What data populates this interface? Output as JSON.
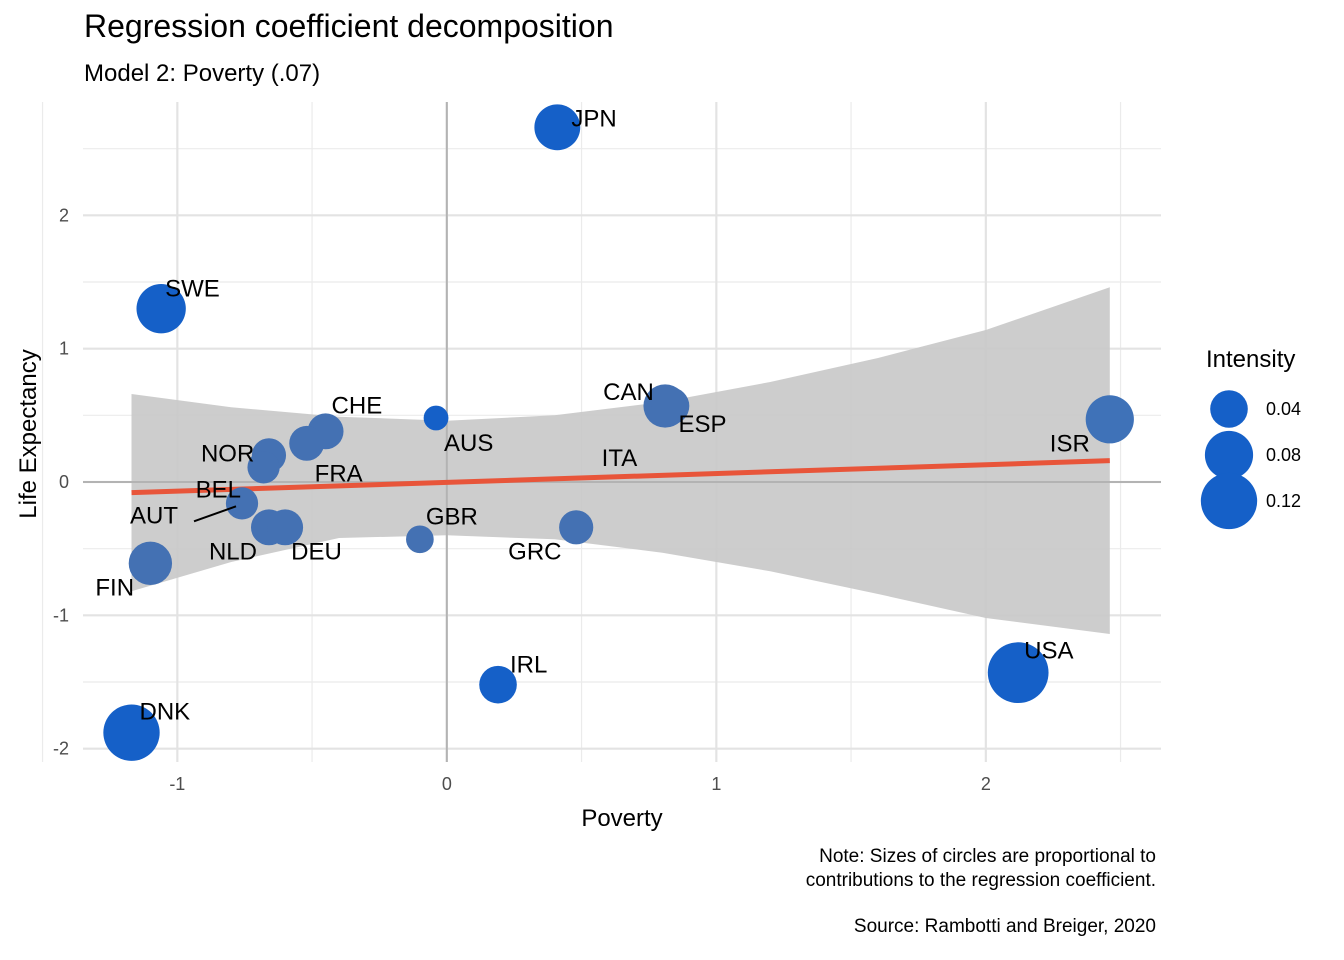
{
  "chart_data": {
    "type": "scatter",
    "title": "Regression coefficient decomposition",
    "subtitle": "Model 2: Poverty (.07)",
    "xlabel": "Poverty",
    "ylabel": "Life Expectancy",
    "xlim": [
      -1.35,
      2.65
    ],
    "ylim": [
      -2.1,
      2.85
    ],
    "x_ticks": [
      -1,
      0,
      1,
      2
    ],
    "y_ticks": [
      -2,
      -1,
      0,
      1,
      2
    ],
    "grid": true,
    "points": [
      {
        "label": "JPN",
        "x": 0.41,
        "y": 2.66,
        "size": 0.07,
        "color": "#1560c8"
      },
      {
        "label": "SWE",
        "x": -1.06,
        "y": 1.3,
        "size": 0.085,
        "color": "#1560c8"
      },
      {
        "label": "CAN",
        "x": 0.81,
        "y": 0.57,
        "size": 0.06,
        "color": "#4471b3"
      },
      {
        "label": "ESP",
        "x": 0.83,
        "y": 0.57,
        "size": 0.04,
        "color": "#4471b3"
      },
      {
        "label": "CHE",
        "x": -0.45,
        "y": 0.38,
        "size": 0.035,
        "color": "#4471b3"
      },
      {
        "label": "AUS",
        "x": -0.04,
        "y": 0.48,
        "size": 0.01,
        "color": "#1560c8"
      },
      {
        "label": "NOR",
        "x": -0.66,
        "y": 0.2,
        "size": 0.03,
        "color": "#4471b3"
      },
      {
        "label": "FRA",
        "x": -0.52,
        "y": 0.29,
        "size": 0.032,
        "color": "#4471b3"
      },
      {
        "label": "BEL",
        "x": -0.68,
        "y": 0.11,
        "size": 0.025,
        "color": "#4471b3"
      },
      {
        "label": "ITA",
        "x": 0.53,
        "y": 0.03,
        "size": 0.0,
        "color": "#1560c8"
      },
      {
        "label": "ISR",
        "x": 2.46,
        "y": 0.47,
        "size": 0.08,
        "color": "#3f72b8"
      },
      {
        "label": "AUT",
        "x": -0.76,
        "y": -0.16,
        "size": 0.025,
        "color": "#4471b3"
      },
      {
        "label": "NLD",
        "x": -0.66,
        "y": -0.34,
        "size": 0.035,
        "color": "#4471b3"
      },
      {
        "label": "DEU",
        "x": -0.6,
        "y": -0.34,
        "size": 0.035,
        "color": "#4471b3"
      },
      {
        "label": "GBR",
        "x": -0.1,
        "y": -0.43,
        "size": 0.015,
        "color": "#4471b3"
      },
      {
        "label": "GRC",
        "x": 0.48,
        "y": -0.34,
        "size": 0.03,
        "color": "#4471b3"
      },
      {
        "label": "FIN",
        "x": -1.1,
        "y": -0.61,
        "size": 0.06,
        "color": "#4471b3"
      },
      {
        "label": "IRL",
        "x": 0.19,
        "y": -1.52,
        "size": 0.04,
        "color": "#1560c8"
      },
      {
        "label": "USA",
        "x": 2.12,
        "y": -1.43,
        "size": 0.145,
        "color": "#1560c8"
      },
      {
        "label": "DNK",
        "x": -1.17,
        "y": -1.88,
        "size": 0.12,
        "color": "#1560c8"
      }
    ],
    "regression": {
      "x0": -1.17,
      "y0": -0.08,
      "x1": 2.46,
      "y1": 0.16,
      "color": "#e8553a"
    },
    "confidence_band": {
      "x": [
        -1.17,
        -0.8,
        -0.4,
        0.0,
        0.4,
        0.8,
        1.2,
        1.6,
        2.0,
        2.46
      ],
      "upper": [
        0.66,
        0.56,
        0.49,
        0.46,
        0.5,
        0.6,
        0.75,
        0.93,
        1.14,
        1.46
      ],
      "lower": [
        -0.82,
        -0.6,
        -0.42,
        -0.4,
        -0.43,
        -0.53,
        -0.67,
        -0.84,
        -1.02,
        -1.14
      ]
    },
    "legend": {
      "title": "Intensity",
      "placement": "right",
      "entries": [
        {
          "label": "0.04",
          "size": 0.04
        },
        {
          "label": "0.08",
          "size": 0.08
        },
        {
          "label": "0.12",
          "size": 0.12
        }
      ]
    }
  },
  "caption": {
    "note_line1": "Note: Sizes of circles are proportional to",
    "note_line2": "contributions to the regression coefficient.",
    "source": "Source: Rambotti and Breiger, 2020"
  }
}
